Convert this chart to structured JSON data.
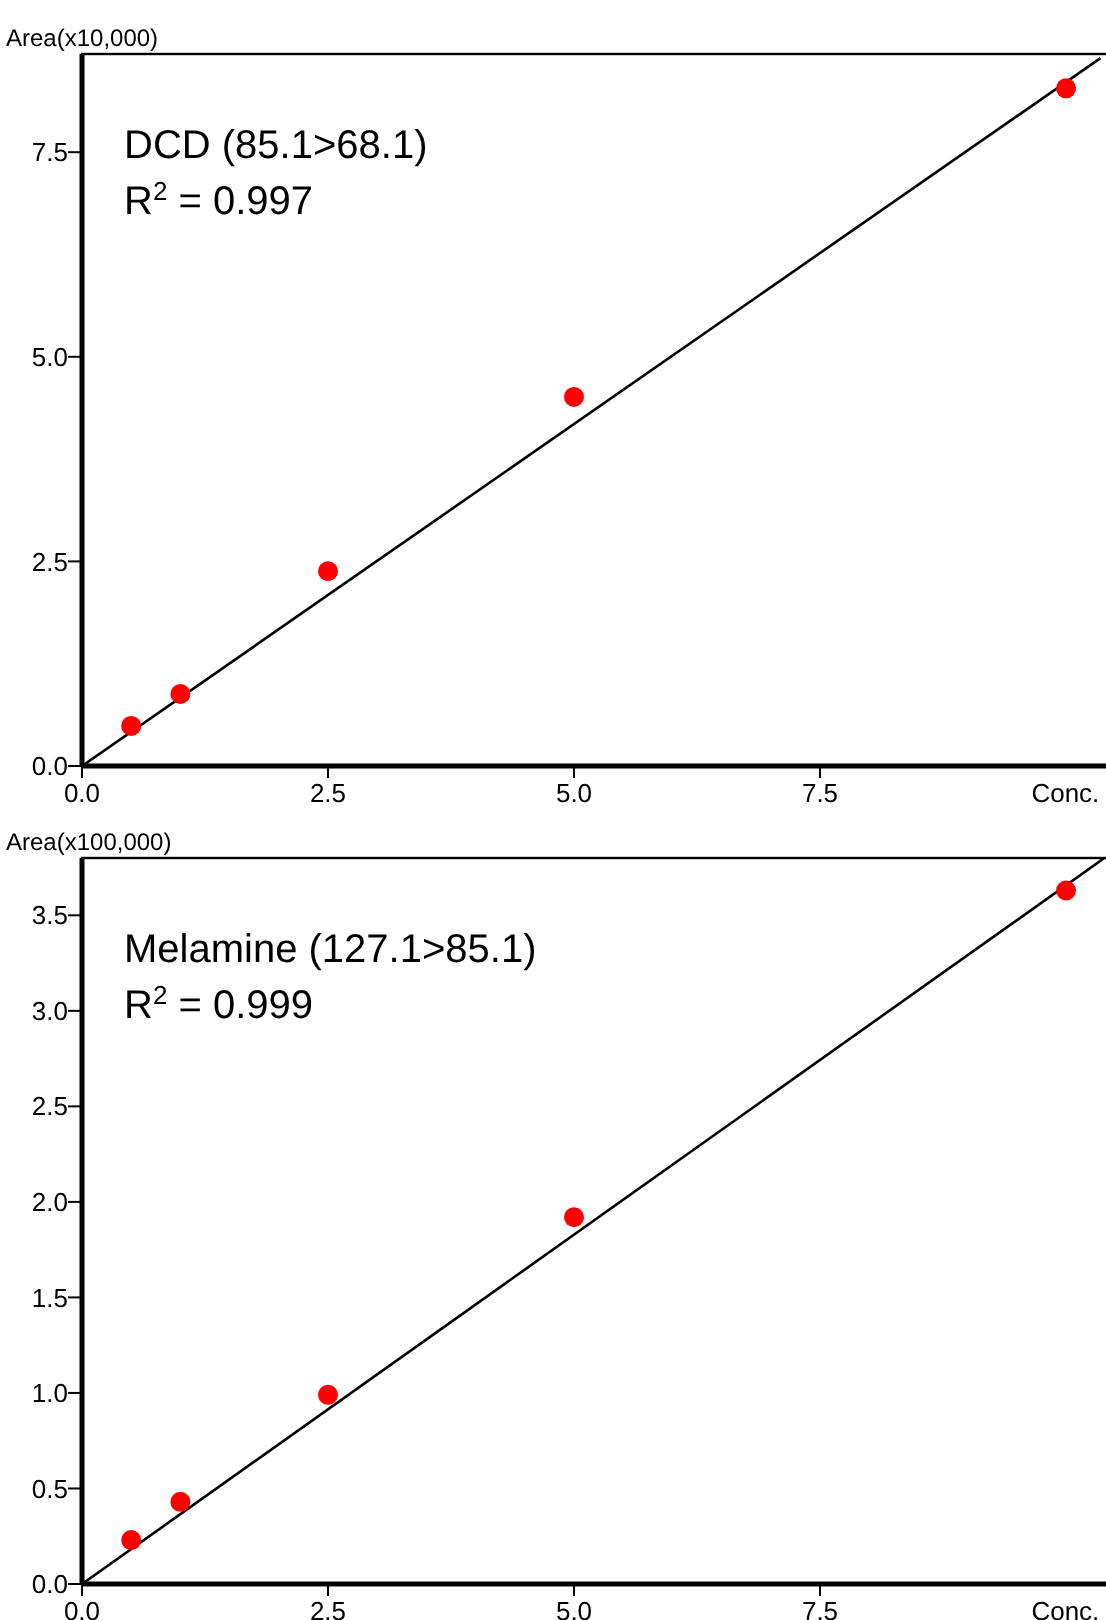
{
  "chart_data": [
    {
      "type": "scatter",
      "xlabel": "Conc.",
      "ylabel": "Area(x10,000)",
      "annotations": [
        "DCD (85.1>68.1)",
        "R$^{2}$ = 0.997"
      ],
      "xlim": [
        0,
        10.4
      ],
      "xticks": [
        {
          "value": 0,
          "label": "0.0"
        },
        {
          "value": 2.5,
          "label": "2.5"
        },
        {
          "value": 5,
          "label": "5.0"
        },
        {
          "value": 7.5,
          "label": "7.5"
        }
      ],
      "ylim": [
        0,
        8.7
      ],
      "yticks": [
        {
          "value": 0,
          "label": "0.0"
        },
        {
          "value": 2.5,
          "label": "2.5"
        },
        {
          "value": 5,
          "label": "5.0"
        },
        {
          "value": 7.5,
          "label": "7.5"
        }
      ],
      "grid": false,
      "marker": "circle",
      "series": [
        {
          "color": "#ff0000",
          "x": [
            0.5,
            1,
            2.5,
            5,
            10
          ],
          "values": [
            0.49,
            0.88,
            2.38,
            4.51,
            8.28
          ]
        },
        {
          "type": "line",
          "color": "#000000",
          "marker": "none",
          "x": [
            0,
            10.35
          ],
          "values": [
            0,
            8.65
          ]
        }
      ]
    },
    {
      "type": "scatter",
      "xlabel": "Conc.",
      "ylabel": "Area(x100,000)",
      "annotations": [
        "Melamine (127.1>85.1)",
        "R$^{2}$ = 0.999"
      ],
      "xlim": [
        0,
        10.4
      ],
      "xticks": [
        {
          "value": 0,
          "label": "0.0"
        },
        {
          "value": 2.5,
          "label": "2.5"
        },
        {
          "value": 5,
          "label": "5.0"
        },
        {
          "value": 7.5,
          "label": "7.5"
        }
      ],
      "ylim": [
        0,
        3.8
      ],
      "yticks": [
        {
          "value": 0,
          "label": "0.0"
        },
        {
          "value": 0.5,
          "label": "0.5"
        },
        {
          "value": 1,
          "label": "1.0"
        },
        {
          "value": 1.5,
          "label": "1.5"
        },
        {
          "value": 2,
          "label": "2.0"
        },
        {
          "value": 2.5,
          "label": "2.5"
        },
        {
          "value": 3,
          "label": "3.0"
        },
        {
          "value": 3.5,
          "label": "3.5"
        }
      ],
      "grid": false,
      "marker": "circle",
      "series": [
        {
          "color": "#ff0000",
          "x": [
            0.5,
            1,
            2.5,
            5,
            10
          ],
          "values": [
            0.23,
            0.43,
            0.99,
            1.92,
            3.63
          ]
        },
        {
          "type": "line",
          "color": "#000000",
          "marker": "none",
          "x": [
            0,
            10.39
          ],
          "values": [
            0,
            3.8
          ]
        }
      ]
    }
  ]
}
